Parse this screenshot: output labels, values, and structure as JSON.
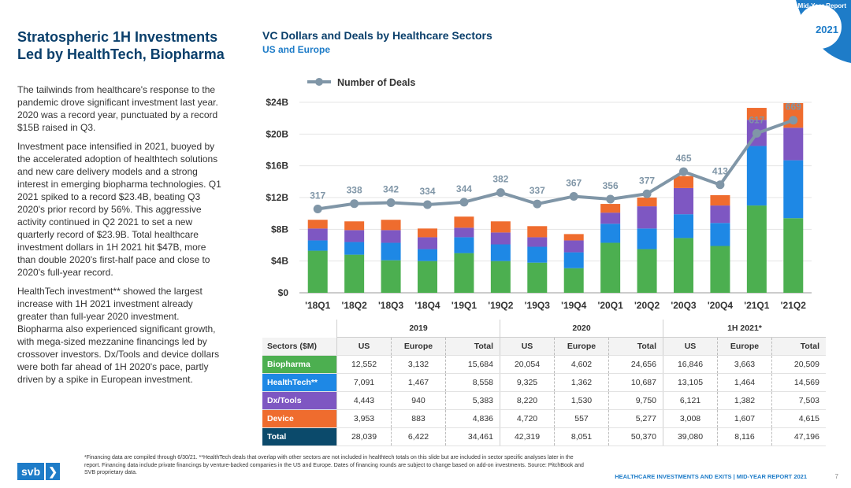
{
  "header": {
    "corner_label": "Mid-Year Report",
    "year": "2021",
    "left_title": "Stratospheric 1H Investments Led by HealthTech, Biopharma",
    "paragraphs": [
      "The tailwinds from healthcare's response to the pandemic drove significant investment last year. 2020 was a record year, punctuated by a record $15B raised in Q3.",
      "Investment pace intensified in 2021, buoyed by the accelerated adoption of healthtech solutions and new care delivery models and a strong interest in emerging biopharma technologies. Q1 2021 spiked to a record $23.4B, beating Q3 2020's prior record by 56%. This aggressive activity continued in Q2 2021 to set a new quarterly record of $23.9B. Total healthcare investment dollars in 1H 2021 hit $47B, more than double 2020's first-half pace and close to 2020's full-year record.",
      "HealthTech investment** showed the largest increase with 1H 2021 investment already greater than full-year 2020 investment.  Biopharma also experienced significant growth, with mega-sized mezzanine financings led by crossover investors. Dx/Tools and device dollars were both far ahead of 1H 2020's pace, partly driven by a spike in European investment."
    ],
    "chart_title": "VC Dollars and Deals by Healthcare Sectors",
    "chart_subtitle": "US and Europe"
  },
  "colors": {
    "Biopharma": "#4caf50",
    "HealthTech": "#1e88e5",
    "DxTools": "#7e57c2",
    "Device": "#ef6c2e",
    "Total": "#0b4a6b",
    "line": "#8096a7",
    "brand": "#1e7cc8"
  },
  "chart_data": {
    "type": "bar",
    "stacked": true,
    "categories": [
      "'18Q1",
      "'18Q2",
      "'18Q3",
      "'18Q4",
      "'19Q1",
      "'19Q2",
      "'19Q3",
      "'19Q4",
      "'20Q1",
      "'20Q2",
      "'20Q3",
      "'20Q4",
      "'21Q1",
      "'21Q2"
    ],
    "series": [
      {
        "name": "Biopharma",
        "values": [
          5.3,
          4.8,
          4.1,
          4.0,
          5.0,
          4.0,
          3.8,
          3.1,
          6.3,
          5.5,
          6.9,
          5.9,
          11.0,
          9.4
        ]
      },
      {
        "name": "HealthTech",
        "values": [
          1.3,
          1.6,
          2.2,
          1.5,
          2.0,
          2.1,
          2.0,
          2.0,
          2.4,
          2.6,
          3.0,
          2.9,
          7.5,
          7.3
        ]
      },
      {
        "name": "Dx/Tools",
        "values": [
          1.5,
          1.5,
          1.6,
          1.5,
          1.2,
          1.5,
          1.2,
          1.5,
          1.4,
          2.8,
          3.3,
          2.2,
          3.3,
          4.1
        ]
      },
      {
        "name": "Device",
        "values": [
          1.1,
          1.1,
          1.3,
          1.1,
          1.4,
          1.4,
          1.4,
          0.8,
          1.1,
          1.1,
          1.5,
          1.3,
          1.5,
          3.1
        ]
      }
    ],
    "line_series": {
      "name": "Number of Deals",
      "values": [
        317,
        338,
        342,
        334,
        344,
        382,
        337,
        367,
        356,
        377,
        465,
        413,
        617,
        669
      ]
    },
    "y_ticks": [
      "$0",
      "$4B",
      "$8B",
      "$12B",
      "$16B",
      "$20B",
      "$24B"
    ],
    "ylim": [
      0,
      24
    ],
    "legend": "Number of Deals"
  },
  "table": {
    "years": [
      "2019",
      "2020",
      "1H 2021*"
    ],
    "headers": [
      "Sectors ($M)",
      "US",
      "Europe",
      "Total",
      "US",
      "Europe",
      "Total",
      "US",
      "Europe",
      "Total"
    ],
    "rows": [
      {
        "sector": "Biopharma",
        "key": "Biopharma",
        "cells": [
          "12,552",
          "3,132",
          "15,684",
          "20,054",
          "4,602",
          "24,656",
          "16,846",
          "3,663",
          "20,509"
        ]
      },
      {
        "sector": "HealthTech**",
        "key": "HealthTech",
        "cells": [
          "7,091",
          "1,467",
          "8,558",
          "9,325",
          "1,362",
          "10,687",
          "13,105",
          "1,464",
          "14,569"
        ]
      },
      {
        "sector": "Dx/Tools",
        "key": "DxTools",
        "cells": [
          "4,443",
          "940",
          "5,383",
          "8,220",
          "1,530",
          "9,750",
          "6,121",
          "1,382",
          "7,503"
        ]
      },
      {
        "sector": "Device",
        "key": "Device",
        "cells": [
          "3,953",
          "883",
          "4,836",
          "4,720",
          "557",
          "5,277",
          "3,008",
          "1,607",
          "4,615"
        ]
      },
      {
        "sector": "Total",
        "key": "Total",
        "cells": [
          "28,039",
          "6,422",
          "34,461",
          "42,319",
          "8,051",
          "50,370",
          "39,080",
          "8,116",
          "47,196"
        ]
      }
    ]
  },
  "footer": {
    "footnote": "*Financing data are compiled through 6/30/21. **HealthTech deals that overlap with other sectors are not included in healthtech totals on this slide but are included in sector specific analyses later in the report. Financing data include private financings by venture-backed companies in the US and Europe. Dates of financing rounds are subject to change based on add-on investments. Source: PitchBook and SVB proprietary data.",
    "report_label": "HEALTHCARE INVESTMENTS AND EXITS | MID-YEAR REPORT 2021",
    "page_number": "7",
    "logo_text": "svb",
    "logo_arrow": "❯"
  }
}
